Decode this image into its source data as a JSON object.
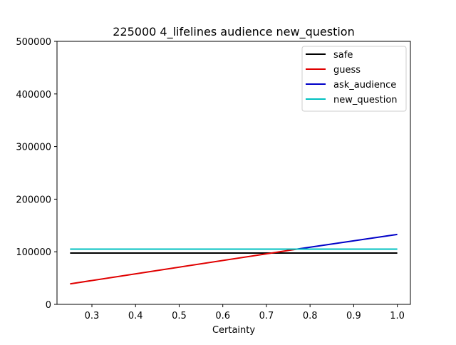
{
  "chart_data": {
    "type": "line",
    "title": "225000 4_lifelines audience new_question",
    "xlabel": "Certainty",
    "ylabel": "",
    "xlim": [
      0.22,
      1.03
    ],
    "ylim": [
      0,
      500000
    ],
    "xticks": [
      0.3,
      0.4,
      0.5,
      0.6,
      0.7,
      0.8,
      0.9,
      1.0
    ],
    "xtick_labels": [
      "0.3",
      "0.4",
      "0.5",
      "0.6",
      "0.7",
      "0.8",
      "0.9",
      "1.0"
    ],
    "yticks": [
      0,
      100000,
      200000,
      300000,
      400000,
      500000
    ],
    "ytick_labels": [
      "0",
      "100000",
      "200000",
      "300000",
      "400000",
      "500000"
    ],
    "grid": false,
    "legend_position": "top-right",
    "series": [
      {
        "name": "safe",
        "color": "#000000",
        "x": [
          0.25,
          1.0
        ],
        "y": [
          97500,
          97500
        ]
      },
      {
        "name": "guess",
        "color": "#e00000",
        "x": [
          0.25,
          0.77
        ],
        "y": [
          39000,
          105000
        ]
      },
      {
        "name": "ask_audience",
        "color": "#0000c8",
        "x": [
          0.77,
          1.0
        ],
        "y": [
          105000,
          133000
        ]
      },
      {
        "name": "new_question",
        "color": "#00c0c0",
        "x": [
          0.25,
          1.0
        ],
        "y": [
          105000,
          105000
        ]
      }
    ]
  }
}
